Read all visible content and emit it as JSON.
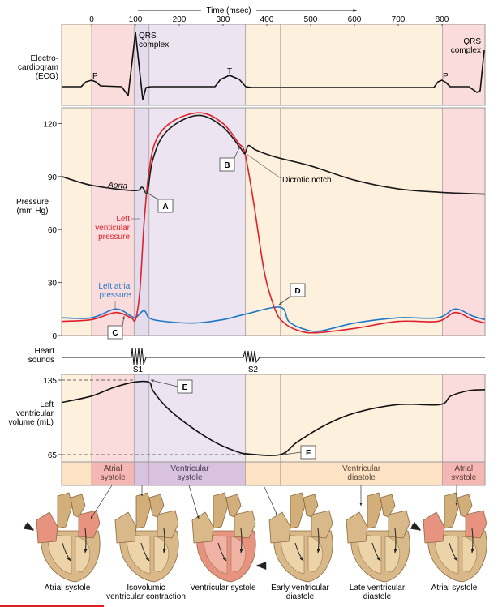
{
  "time_axis": {
    "label": "Time (msec)",
    "ticks": [
      0,
      100,
      200,
      300,
      400,
      500,
      600,
      700,
      800
    ],
    "range": [
      -68,
      898
    ]
  },
  "phase_boundaries_msec": [
    0,
    97,
    131,
    351,
    431,
    801
  ],
  "colors": {
    "late_diastole": "#fdf0dc",
    "atrial_systole": "#fbdcdc",
    "isovolumic": "#e4dcec",
    "ventricular_systole": "#ece4f0",
    "strip_beige": "#fde3c4",
    "strip_pink": "#f5b7b3",
    "strip_purple": "#d9c2e0",
    "aorta": "#1a1a1a",
    "left_ventricle": "#e0202a",
    "left_atrium": "#1f78c8",
    "heart_tan": "#d9b98a",
    "heart_pink": "#e8937f"
  },
  "ecg": {
    "label_lines": [
      "Electro-",
      "cardiogram",
      "(ECG)"
    ],
    "qrs_label_lines": [
      "QRS",
      "complex"
    ],
    "p_label": "P",
    "t_label": "T"
  },
  "pressure": {
    "label_lines": [
      "Pressure",
      "(mm Hg)"
    ],
    "ticks": [
      0,
      30,
      60,
      90,
      120
    ],
    "aorta_label": "Aorta",
    "lv_label_lines": [
      "Left",
      "venticular",
      "pressure"
    ],
    "la_label_lines": [
      "Left atrial",
      "pressure"
    ],
    "dicrotic_label": "Dicrotic notch",
    "series": {
      "aorta": [
        [
          -68,
          90
        ],
        [
          0,
          85
        ],
        [
          97,
          82
        ],
        [
          115,
          84
        ],
        [
          127,
          81
        ],
        [
          138,
          98
        ],
        [
          160,
          112
        ],
        [
          200,
          121
        ],
        [
          250,
          124.5
        ],
        [
          300,
          118
        ],
        [
          340,
          106
        ],
        [
          350,
          103
        ],
        [
          358,
          107.5
        ],
        [
          375,
          105
        ],
        [
          420,
          101
        ],
        [
          500,
          96
        ],
        [
          600,
          88
        ],
        [
          700,
          83
        ],
        [
          800,
          81
        ],
        [
          898,
          80
        ]
      ],
      "left_ventricle": [
        [
          -68,
          8
        ],
        [
          0,
          9
        ],
        [
          55,
          13
        ],
        [
          90,
          10
        ],
        [
          100,
          9
        ],
        [
          110,
          25
        ],
        [
          120,
          65
        ],
        [
          132,
          95
        ],
        [
          150,
          112
        ],
        [
          190,
          122
        ],
        [
          250,
          126
        ],
        [
          300,
          120
        ],
        [
          335,
          109
        ],
        [
          350,
          103
        ],
        [
          370,
          75
        ],
        [
          395,
          35
        ],
        [
          420,
          14
        ],
        [
          440,
          7
        ],
        [
          470,
          3
        ],
        [
          510,
          1.5
        ],
        [
          600,
          4
        ],
        [
          700,
          8
        ],
        [
          790,
          8
        ],
        [
          830,
          13
        ],
        [
          870,
          9
        ],
        [
          898,
          7
        ]
      ],
      "left_atrium": [
        [
          -68,
          10
        ],
        [
          0,
          10
        ],
        [
          55,
          15
        ],
        [
          90,
          11
        ],
        [
          100,
          10
        ],
        [
          120,
          14
        ],
        [
          140,
          9
        ],
        [
          230,
          7
        ],
        [
          300,
          9
        ],
        [
          350,
          12
        ],
        [
          430,
          16
        ],
        [
          450,
          8
        ],
        [
          480,
          4
        ],
        [
          520,
          2.5
        ],
        [
          600,
          7
        ],
        [
          700,
          10
        ],
        [
          790,
          10
        ],
        [
          830,
          15
        ],
        [
          870,
          11
        ],
        [
          898,
          9
        ]
      ]
    }
  },
  "heart_sounds": {
    "label_lines": [
      "Heart",
      "sounds"
    ],
    "s1": "S1",
    "s2": "S2"
  },
  "volume": {
    "label_lines": [
      "Left",
      "ventricular",
      "volume (mL)"
    ],
    "ticks": [
      65,
      135
    ],
    "series": [
      [
        -68,
        114
      ],
      [
        0,
        120
      ],
      [
        50,
        128
      ],
      [
        97,
        133
      ],
      [
        131,
        133
      ],
      [
        140,
        125
      ],
      [
        170,
        110
      ],
      [
        220,
        93
      ],
      [
        280,
        77
      ],
      [
        330,
        68
      ],
      [
        360,
        65.5
      ],
      [
        431,
        65
      ],
      [
        470,
        77
      ],
      [
        530,
        92
      ],
      [
        600,
        104
      ],
      [
        700,
        112
      ],
      [
        795,
        112
      ],
      [
        820,
        120
      ],
      [
        860,
        125
      ],
      [
        898,
        126
      ]
    ]
  },
  "callouts": [
    "A",
    "B",
    "C",
    "D",
    "E",
    "F"
  ],
  "phases": {
    "atrial_systole_lines": [
      "Atrial",
      "systole"
    ],
    "ventricular_systole_lines": [
      "Ventricular",
      "systole"
    ],
    "ventricular_diastole_lines": [
      "Ventricular",
      "diastole"
    ]
  },
  "hearts": [
    {
      "label_lines": [
        "Atrial systole"
      ],
      "state": "atrial"
    },
    {
      "label_lines": [
        "Isovolumic",
        "ventricular contraction"
      ],
      "state": "relaxed"
    },
    {
      "label_lines": [
        "Ventricular systole"
      ],
      "state": "ventricular"
    },
    {
      "label_lines": [
        "Early ventricular",
        "diastole"
      ],
      "state": "relaxed"
    },
    {
      "label_lines": [
        "Late ventricular",
        "diastole"
      ],
      "state": "relaxed"
    },
    {
      "label_lines": [
        "Atrial systole"
      ],
      "state": "atrial"
    }
  ]
}
